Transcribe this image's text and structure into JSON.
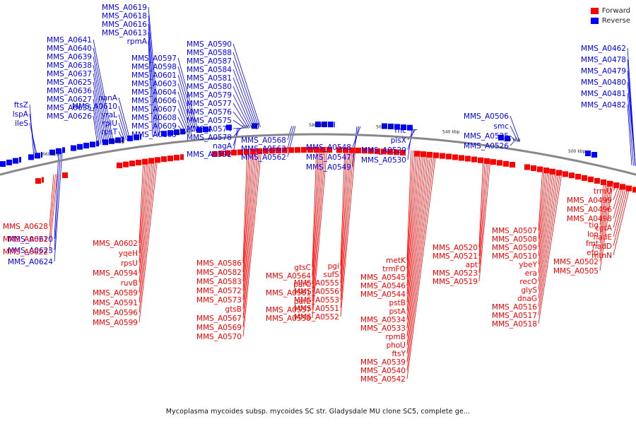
{
  "caption": "Mycoplasma mycoides subsp. mycoides SC str. Gladysdale MU clone SC5, complete ge...",
  "legend": [
    {
      "label": "Forward",
      "color": "#ff0000"
    },
    {
      "label": "Reverse",
      "color": "#0000ff"
    }
  ],
  "colors": {
    "forward": "#ff0000",
    "reverse": "#0000ff",
    "backbone": "#888888"
  },
  "ticks": [
    "660 kbp",
    "640 kbp",
    "620 kbp",
    "600 kbp",
    "580 kbp",
    "560 kbp",
    "540 kbp",
    "520 kbp",
    "500 kbp"
  ],
  "reverse_labels": [
    "ftsZ",
    "lspA",
    "ileS",
    "MMS_A0626",
    "MMS_A0635",
    "MMS_A0627",
    "MMS_A0636",
    "MMS_A0625",
    "MMS_A0637",
    "MMS_A0638",
    "MMS_A0639",
    "MMS_A0640",
    "MMS_A0641",
    "rpsT",
    "rplU",
    "yraL",
    "MMS_A0610",
    "nanA",
    "MMS_A0605",
    "MMS_A0609",
    "MMS_A0608",
    "MMS_A0607",
    "MMS_A0606",
    "MMS_A0604",
    "MMS_A0603",
    "MMS_A0601",
    "MMS_A0598",
    "MMS_A0597",
    "rpmA",
    "MMS_A0613",
    "MMS_A0616",
    "MMS_A0618",
    "MMS_A0619",
    "MMS_A0592",
    "nagA",
    "MMS_A0578",
    "MMS_A0574",
    "MMS_A0575",
    "MMS_A0576",
    "MMS_A0577",
    "MMS_A0579",
    "MMS_A0580",
    "MMS_A0581",
    "MMS_A0584",
    "MMS_A0587",
    "MMS_A0588",
    "MMS_A0590",
    "MMS_A0568",
    "MMS_A0563",
    "MMS_A0562",
    "MMS_A0549",
    "MMS_A0547",
    "MMS_A0548",
    "MMS_A0530",
    "MMS_A0529",
    "plsX",
    "rnc",
    "MMS_A0526",
    "MMS_A0525",
    "smc",
    "MMS_A0506",
    "MMS_A0482",
    "MMS_A0481",
    "MMS_A0480",
    "MMS_A0479",
    "MMS_A0478",
    "MMS_A0462",
    "MMS_A0620",
    "MMS_A0623",
    "MMS_A0624"
  ],
  "forward_labels": [
    "MMS_A0628",
    "MMS_A0621",
    "MMS_A0622",
    "MMS_A0602",
    "yqeH",
    "rpsU",
    "MMS_A0594",
    "ruvB",
    "MMS_A0589",
    "MMS_A0591",
    "MMS_A0596",
    "MMS_A0599",
    "MMS_A0586",
    "MMS_A0582",
    "MMS_A0583",
    "MMS_A0572",
    "MMS_A0573",
    "gtsB",
    "MMS_A0567",
    "MMS_A0569",
    "MMS_A0570",
    "gtsC",
    "MMS_A0564",
    "parC",
    "MMS_A0561",
    "parE",
    "MMS_A0557",
    "MMS_A0558",
    "pgi",
    "sufS",
    "MMS_A0555",
    "MMS_A0556",
    "MMS_A0553",
    "MMS_A0551",
    "MMS_A0552",
    "metK",
    "trmFO",
    "MMS_A0545",
    "MMS_A0546",
    "MMS_A0544",
    "pstB",
    "pstA",
    "MMS_A0534",
    "MMS_A0533",
    "rpmB",
    "phoU",
    "ftsY",
    "MMS_A0539",
    "MMS_A0540",
    "MMS_A0542",
    "MMS_A0520",
    "MMS_A0521",
    "apt",
    "MMS_A0523",
    "MMS_A0519",
    "MMS_A0507",
    "MMS_A0508",
    "MMS_A0509",
    "MMS_A0510",
    "ybeY",
    "era",
    "recO",
    "glyS",
    "dnaG",
    "MMS_A0516",
    "MMS_A0517",
    "MMS_A0518",
    "tig",
    "lon",
    "fmt",
    "efp",
    "MMS_A0502",
    "MMS_A0505",
    "trmU",
    "MMS_A0499",
    "MMS_A0496",
    "MMS_A0498",
    "cgtA",
    "nadE",
    "nadD",
    "mtnN"
  ]
}
